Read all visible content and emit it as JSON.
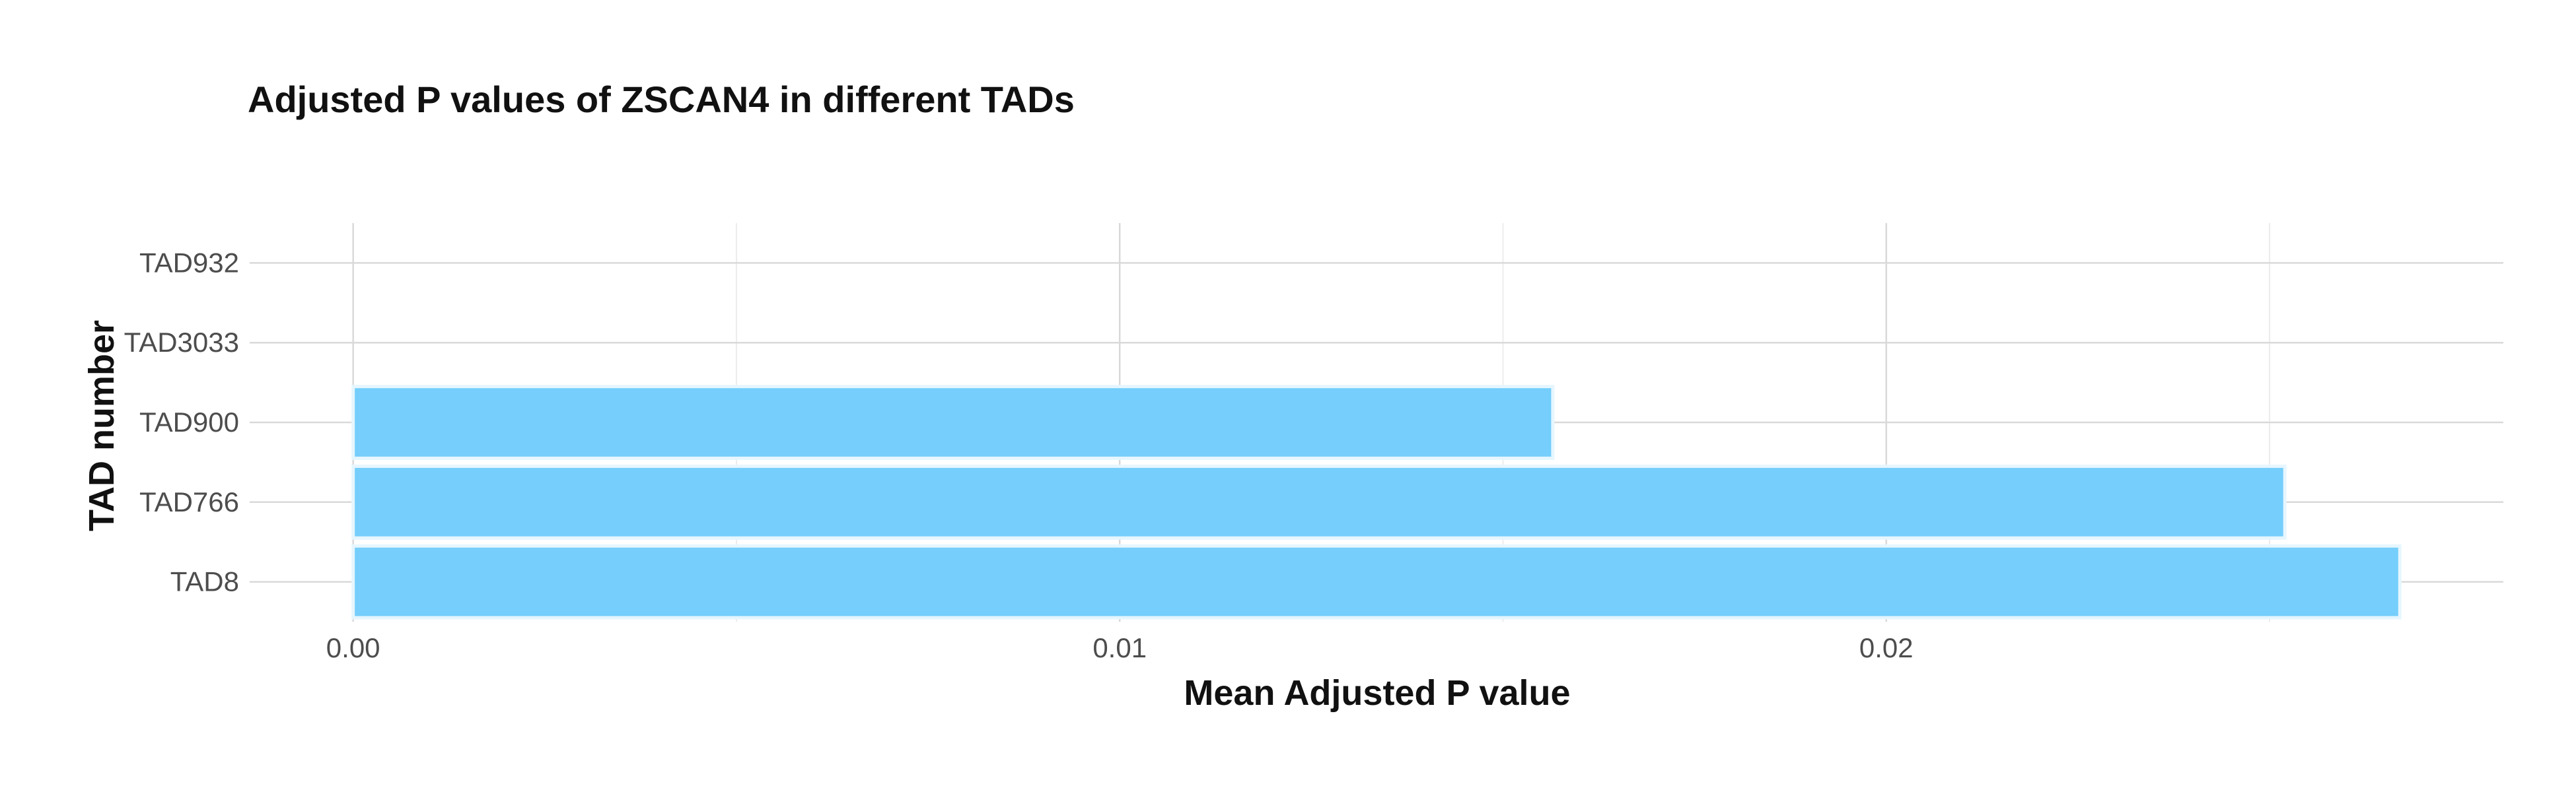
{
  "chart_data": {
    "type": "bar",
    "orientation": "horizontal",
    "title": "Adjusted P values of ZSCAN4 in different TADs",
    "xlabel": "Mean Adjusted P value",
    "ylabel": "TAD number",
    "categories": [
      "TAD932",
      "TAD3033",
      "TAD900",
      "TAD766",
      "TAD8"
    ],
    "values": [
      0.0,
      0.0,
      0.01565,
      0.0252,
      0.0267
    ],
    "xlim": [
      -0.00135,
      0.02805
    ],
    "x_ticks": [
      0.0,
      0.01,
      0.02
    ],
    "x_tick_labels": [
      "0.00",
      "0.01",
      "0.02"
    ],
    "grid": true,
    "legend": "none",
    "bar_color": "#75CEFB",
    "bar_edge_color": "#E6F6FE"
  }
}
